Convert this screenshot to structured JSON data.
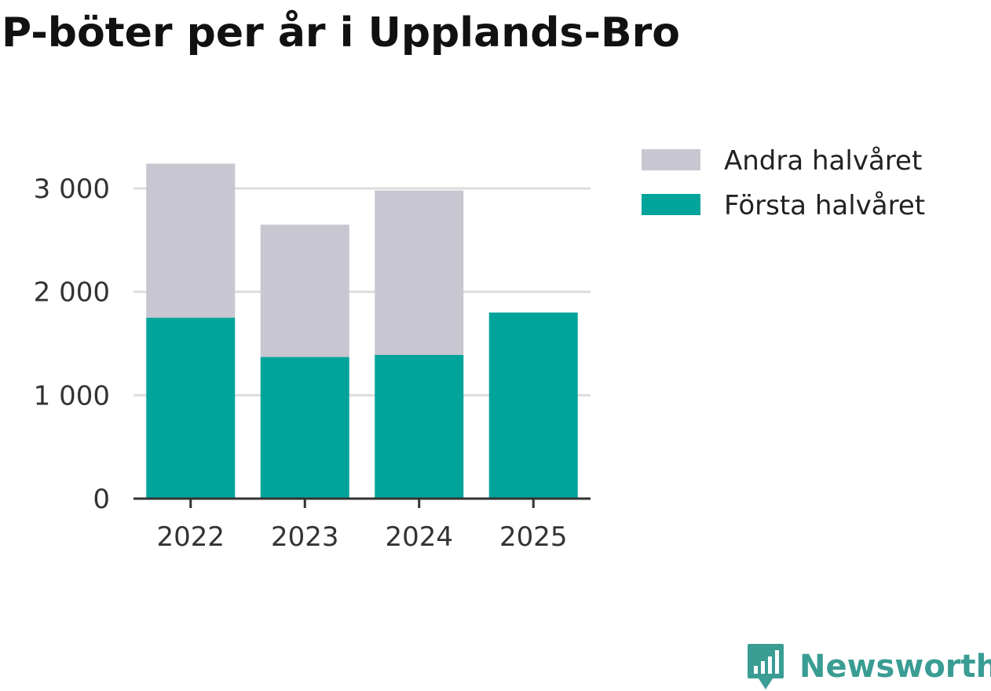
{
  "title": "P-böter per år i Upplands-Bro",
  "brand": {
    "name": "Newsworthy"
  },
  "colors": {
    "first_half": "#00a49a",
    "second_half": "#c8c7d1",
    "grid": "#dddddd",
    "axis": "#333333"
  },
  "chart_data": {
    "type": "bar",
    "stacked": true,
    "title": "P-böter per år i Upplands-Bro",
    "categories": [
      "2022",
      "2023",
      "2024",
      "2025"
    ],
    "series": [
      {
        "name": "Första halvåret",
        "values": [
          1750,
          1370,
          1390,
          1800
        ]
      },
      {
        "name": "Andra halvåret",
        "values": [
          1490,
          1280,
          1590,
          0
        ]
      }
    ],
    "legend_order": [
      "Andra halvåret",
      "Första halvåret"
    ],
    "y_ticks": [
      0,
      1000,
      2000,
      3000
    ],
    "y_tick_labels": [
      "0",
      "1 000",
      "2 000",
      "3 000"
    ],
    "ylim": [
      0,
      3000
    ],
    "grid": true,
    "legend_position": "top-right",
    "xlabel": "",
    "ylabel": ""
  }
}
